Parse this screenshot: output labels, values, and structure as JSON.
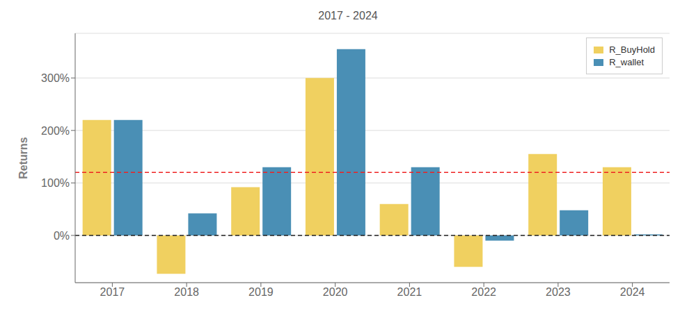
{
  "chart_data": {
    "type": "bar",
    "title": "2017 - 2024",
    "y_label": "Returns",
    "categories": [
      "2017",
      "2018",
      "2019",
      "2020",
      "2021",
      "2022",
      "2023",
      "2024"
    ],
    "series": [
      {
        "name": "R_BuyHold",
        "color": "#F0D060",
        "values": [
          2.2,
          -0.73,
          0.92,
          3.0,
          0.6,
          -0.6,
          1.55,
          1.3
        ]
      },
      {
        "name": "R_wallet",
        "color": "#4A8FB5",
        "values": [
          2.2,
          0.42,
          1.3,
          3.55,
          1.3,
          -0.1,
          0.48,
          0.02
        ]
      }
    ],
    "ylim": [
      -0.9,
      3.85
    ],
    "yticks": [
      {
        "value": 0.0,
        "label": "0%"
      },
      {
        "value": 1.0,
        "label": "100%"
      },
      {
        "value": 2.0,
        "label": "200%"
      },
      {
        "value": 3.0,
        "label": "300%"
      }
    ],
    "reference_lines": [
      {
        "y": 0,
        "color": "#222222",
        "line_style": "dashed"
      },
      {
        "y": 1.2,
        "color": "#EE2222",
        "line_style": "dashed"
      }
    ],
    "grid": true,
    "legend": "upper right"
  }
}
